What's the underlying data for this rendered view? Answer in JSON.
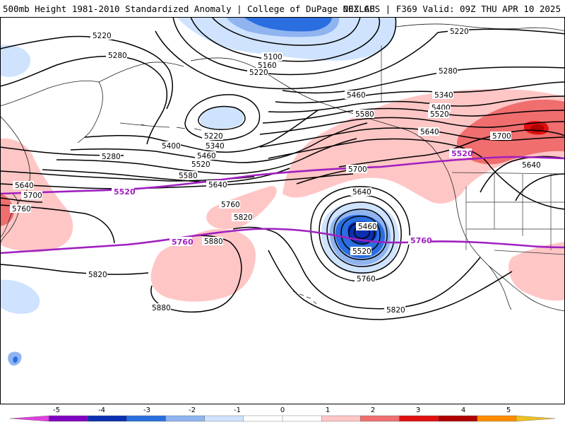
{
  "header": {
    "title_left": "500mb Height 1981-2010 Standardized Anomaly | College of DuPage NEXLAB",
    "title_right": "00Z GFS | F369 Valid: 09Z THU APR 10 2025"
  },
  "contour_labels": [
    {
      "id": "h5220-nw",
      "text": "5220"
    },
    {
      "id": "h5280-nw",
      "text": "5280"
    },
    {
      "id": "h5100",
      "text": "5100"
    },
    {
      "id": "h5160",
      "text": "5160"
    },
    {
      "id": "h5220-n",
      "text": "5220"
    },
    {
      "id": "h5220-ne",
      "text": "5220"
    },
    {
      "id": "h5280-ne",
      "text": "5280"
    },
    {
      "id": "h5340-ne",
      "text": "5340"
    },
    {
      "id": "h5400-ne",
      "text": "5400"
    },
    {
      "id": "h5520-ne",
      "text": "5520"
    },
    {
      "id": "h5460-n",
      "text": "5460"
    },
    {
      "id": "h5580-n",
      "text": "5580"
    },
    {
      "id": "h5640-n",
      "text": "5640"
    },
    {
      "id": "h5700-ne",
      "text": "5700"
    },
    {
      "id": "h5640-e",
      "text": "5640"
    },
    {
      "id": "h5220-low",
      "text": "5220"
    },
    {
      "id": "h5340-c",
      "text": "5340"
    },
    {
      "id": "h5400-c",
      "text": "5400"
    },
    {
      "id": "h5460-c",
      "text": "5460"
    },
    {
      "id": "h5520-c",
      "text": "5520"
    },
    {
      "id": "h5280-w",
      "text": "5280"
    },
    {
      "id": "h5580-c",
      "text": "5580"
    },
    {
      "id": "h5640-c",
      "text": "5640"
    },
    {
      "id": "h5700-c",
      "text": "5700"
    },
    {
      "id": "h5640-w",
      "text": "5640"
    },
    {
      "id": "h5700-w",
      "text": "5700"
    },
    {
      "id": "h5760-w",
      "text": "5760"
    },
    {
      "id": "h5640-low",
      "text": "5640"
    },
    {
      "id": "h5760-c",
      "text": "5760"
    },
    {
      "id": "h5820-c",
      "text": "5820"
    },
    {
      "id": "h5880-c",
      "text": "5880"
    },
    {
      "id": "h5460-low",
      "text": "5460"
    },
    {
      "id": "h5520-low",
      "text": "5520"
    },
    {
      "id": "h5760-low",
      "text": "5760"
    },
    {
      "id": "h5820-w",
      "text": "5820"
    },
    {
      "id": "h5880-sw",
      "text": "5880"
    },
    {
      "id": "h5820-s",
      "text": "5820"
    }
  ],
  "reference_labels": [
    {
      "id": "ref5520-w",
      "text": "5520"
    },
    {
      "id": "ref5520-e",
      "text": "5520"
    },
    {
      "id": "ref5760-w",
      "text": "5760"
    },
    {
      "id": "ref5760-e",
      "text": "5760"
    }
  ],
  "colorbar": {
    "ticks": [
      "-5",
      "-4",
      "-3",
      "-2",
      "-1",
      "0",
      "1",
      "2",
      "3",
      "4",
      "5"
    ],
    "colors": [
      "#e040e0",
      "#8000c0",
      "#0a2fb0",
      "#2a6ee0",
      "#8fb4f0",
      "#cfe3ff",
      "#ffffff",
      "#ffffff",
      "#ffc6c6",
      "#f06e6e",
      "#e01010",
      "#b00000",
      "#ff8c00",
      "#f0c020"
    ]
  },
  "colors": {
    "ref_contour": "#a020c0",
    "neg_anom_light": "#cfe3ff",
    "neg_anom_mid": "#8fb4f0",
    "neg_anom_strong": "#2a6ee0",
    "neg_anom_deep": "#0a2fb0",
    "pos_anom_light": "#ffc6c6",
    "pos_anom_mid": "#f06e6e",
    "pos_anom_strong": "#e01010",
    "pos_anom_deep": "#b00000"
  }
}
